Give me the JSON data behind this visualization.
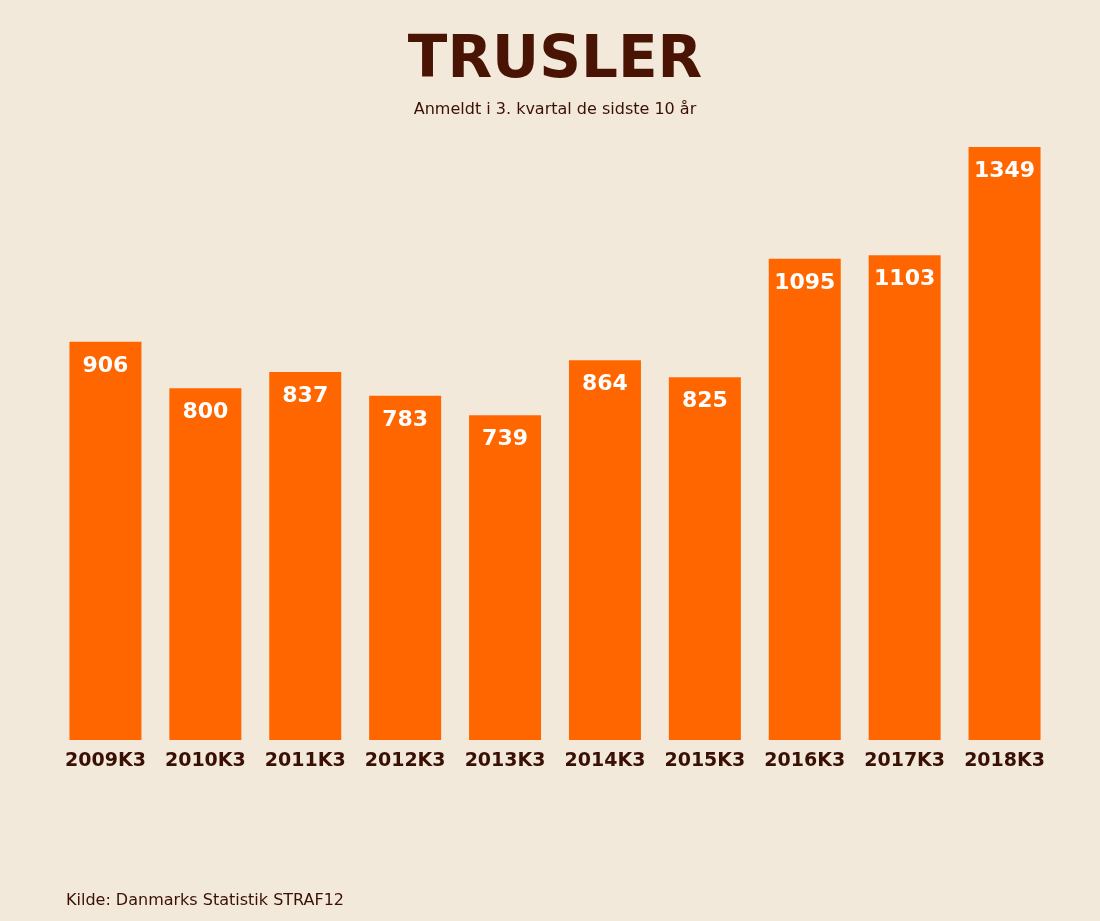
{
  "chart_data": {
    "type": "bar",
    "title": "TRUSLER",
    "subtitle": "Anmeldt i 3. kvartal de sidste 10 år",
    "categories": [
      "2009K3",
      "2010K3",
      "2011K3",
      "2012K3",
      "2013K3",
      "2014K3",
      "2015K3",
      "2016K3",
      "2017K3",
      "2018K3"
    ],
    "values": [
      906,
      800,
      837,
      783,
      739,
      864,
      825,
      1095,
      1103,
      1349
    ],
    "color": "#ff6600",
    "data_labels": true,
    "annotations": [
      "Kilde: Danmarks Statistik STRAF12"
    ]
  }
}
